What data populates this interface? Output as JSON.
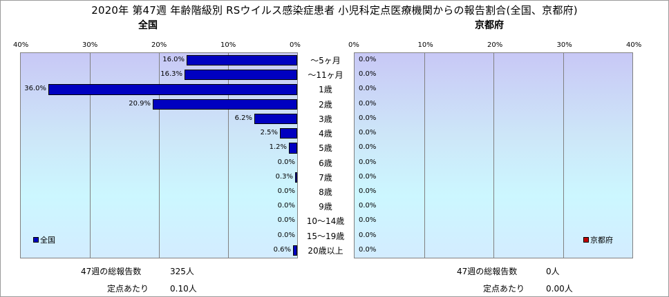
{
  "title": "2020年 第47週 年齢階級別 RSウイルス感染症患者 小児科定点医療機関からの報告割合(全国、京都府)",
  "chart_data": [
    {
      "type": "bar",
      "orientation": "horizontal",
      "subtitle": "全国",
      "series": [
        {
          "name": "全国",
          "color": "#0000c0",
          "values": [
            16.0,
            16.3,
            36.0,
            20.9,
            6.2,
            2.5,
            1.2,
            0.0,
            0.3,
            0.0,
            0.0,
            0.0,
            0.0,
            0.6
          ]
        }
      ],
      "labels": [
        "16.0%",
        "16.3%",
        "36.0%",
        "20.9%",
        "6.2%",
        "2.5%",
        "1.2%",
        "0.0%",
        "0.3%",
        "0.0%",
        "0.0%",
        "0.0%",
        "0.0%",
        "0.6%"
      ],
      "xlim": [
        0,
        40
      ],
      "xticks": [
        "40%",
        "30%",
        "20%",
        "10%",
        "0%"
      ],
      "direction": "right-to-left",
      "legend": "bottom-left"
    },
    {
      "type": "bar",
      "orientation": "horizontal",
      "subtitle": "京都府",
      "series": [
        {
          "name": "京都府",
          "color": "#c00000",
          "values": [
            0,
            0,
            0,
            0,
            0,
            0,
            0,
            0,
            0,
            0,
            0,
            0,
            0,
            0
          ]
        }
      ],
      "labels": [
        "0.0%",
        "0.0%",
        "0.0%",
        "0.0%",
        "0.0%",
        "0.0%",
        "0.0%",
        "0.0%",
        "0.0%",
        "0.0%",
        "0.0%",
        "0.0%",
        "0.0%",
        "0.0%"
      ],
      "xlim": [
        0,
        40
      ],
      "xticks": [
        "0%",
        "10%",
        "20%",
        "30%",
        "40%"
      ],
      "direction": "left-to-right",
      "legend": "bottom-right"
    }
  ],
  "categories": [
    "～5ヶ月",
    "～11ヶ月",
    "1歳",
    "2歳",
    "3歳",
    "4歳",
    "5歳",
    "6歳",
    "7歳",
    "8歳",
    "9歳",
    "10～14歳",
    "15～19歳",
    "20歳以上"
  ],
  "stats": {
    "national": {
      "total_label": "47週の総報告数",
      "total_value": "325人",
      "per_label": "定点あたり",
      "per_value": "0.10人"
    },
    "kyoto": {
      "total_label": "47週の総報告数",
      "total_value": "0人",
      "per_label": "定点あたり",
      "per_value": "0.00人"
    }
  }
}
